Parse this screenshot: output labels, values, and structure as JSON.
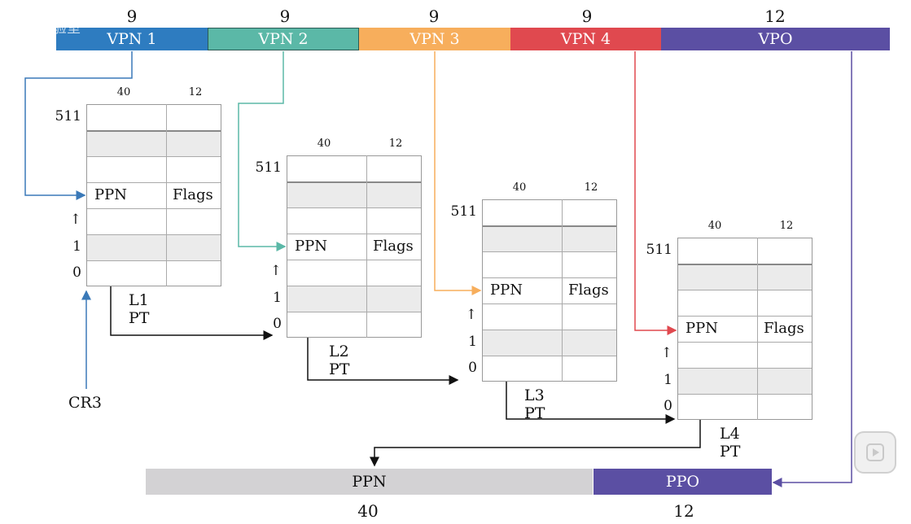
{
  "address_fields": [
    {
      "label": "VPN 1",
      "bits": "9",
      "color": "#2e7cc0"
    },
    {
      "label": "VPN 2",
      "bits": "9",
      "color": "#5bb8a7"
    },
    {
      "label": "VPN 3",
      "bits": "9",
      "color": "#f7ae5c"
    },
    {
      "label": "VPN 4",
      "bits": "9",
      "color": "#e0494f"
    },
    {
      "label": "VPO",
      "bits": "12",
      "color": "#5b4fa3"
    }
  ],
  "page_tables": [
    {
      "name": "L1 PT",
      "col_ppn_bits": "40",
      "col_flag_bits": "12",
      "top_index": "511",
      "arrow": "↑",
      "idx1": "1",
      "idx0": "0",
      "entry_ppn": "PPN",
      "entry_flags": "Flags"
    },
    {
      "name": "L2 PT",
      "col_ppn_bits": "40",
      "col_flag_bits": "12",
      "top_index": "511",
      "arrow": "↑",
      "idx1": "1",
      "idx0": "0",
      "entry_ppn": "PPN",
      "entry_flags": "Flags"
    },
    {
      "name": "L3 PT",
      "col_ppn_bits": "40",
      "col_flag_bits": "12",
      "top_index": "511",
      "arrow": "↑",
      "idx1": "1",
      "idx0": "0",
      "entry_ppn": "PPN",
      "entry_flags": "Flags"
    },
    {
      "name": "L4 PT",
      "col_ppn_bits": "40",
      "col_flag_bits": "12",
      "top_index": "511",
      "arrow": "↑",
      "idx1": "1",
      "idx0": "0",
      "entry_ppn": "PPN",
      "entry_flags": "Flags"
    }
  ],
  "cr3_label": "CR3",
  "physical_address": {
    "ppn_label": "PPN",
    "ppn_bits": "40",
    "ppn_color": "#d3d2d4",
    "ppo_label": "PPO",
    "ppo_bits": "12",
    "ppo_color": "#5b4fa3"
  },
  "watermark_text": "实验室",
  "play_icon": "play-icon"
}
